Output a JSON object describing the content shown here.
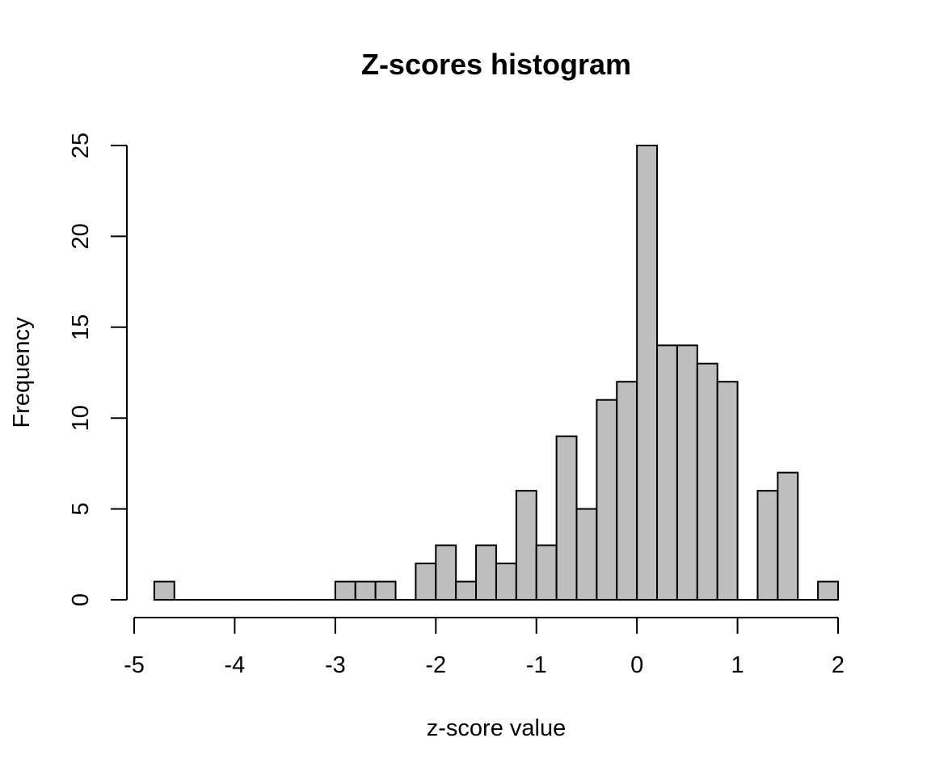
{
  "chart_data": {
    "type": "bar",
    "title": "Z-scores histogram",
    "xlabel": "z-score value",
    "ylabel": "Frequency",
    "bin_width": 0.2,
    "bins": [
      {
        "x0": -4.8,
        "x1": -4.6,
        "count": 1
      },
      {
        "x0": -4.6,
        "x1": -4.4,
        "count": 0
      },
      {
        "x0": -4.4,
        "x1": -4.2,
        "count": 0
      },
      {
        "x0": -4.2,
        "x1": -4.0,
        "count": 0
      },
      {
        "x0": -4.0,
        "x1": -3.8,
        "count": 0
      },
      {
        "x0": -3.8,
        "x1": -3.6,
        "count": 0
      },
      {
        "x0": -3.6,
        "x1": -3.4,
        "count": 0
      },
      {
        "x0": -3.4,
        "x1": -3.2,
        "count": 0
      },
      {
        "x0": -3.2,
        "x1": -3.0,
        "count": 0
      },
      {
        "x0": -3.0,
        "x1": -2.8,
        "count": 1
      },
      {
        "x0": -2.8,
        "x1": -2.6,
        "count": 1
      },
      {
        "x0": -2.6,
        "x1": -2.4,
        "count": 1
      },
      {
        "x0": -2.4,
        "x1": -2.2,
        "count": 0
      },
      {
        "x0": -2.2,
        "x1": -2.0,
        "count": 2
      },
      {
        "x0": -2.0,
        "x1": -1.8,
        "count": 3
      },
      {
        "x0": -1.8,
        "x1": -1.6,
        "count": 1
      },
      {
        "x0": -1.6,
        "x1": -1.4,
        "count": 3
      },
      {
        "x0": -1.4,
        "x1": -1.2,
        "count": 2
      },
      {
        "x0": -1.2,
        "x1": -1.0,
        "count": 6
      },
      {
        "x0": -1.0,
        "x1": -0.8,
        "count": 3
      },
      {
        "x0": -0.8,
        "x1": -0.6,
        "count": 9
      },
      {
        "x0": -0.6,
        "x1": -0.4,
        "count": 5
      },
      {
        "x0": -0.4,
        "x1": -0.2,
        "count": 11
      },
      {
        "x0": -0.2,
        "x1": 0.0,
        "count": 12
      },
      {
        "x0": 0.0,
        "x1": 0.2,
        "count": 25
      },
      {
        "x0": 0.2,
        "x1": 0.4,
        "count": 14
      },
      {
        "x0": 0.4,
        "x1": 0.6,
        "count": 14
      },
      {
        "x0": 0.6,
        "x1": 0.8,
        "count": 13
      },
      {
        "x0": 0.8,
        "x1": 1.0,
        "count": 12
      },
      {
        "x0": 1.0,
        "x1": 1.2,
        "count": 0
      },
      {
        "x0": 1.2,
        "x1": 1.4,
        "count": 6
      },
      {
        "x0": 1.4,
        "x1": 1.6,
        "count": 7
      },
      {
        "x0": 1.6,
        "x1": 1.8,
        "count": 0
      },
      {
        "x0": 1.8,
        "x1": 2.0,
        "count": 1
      }
    ],
    "xlim": [
      -5,
      2
    ],
    "ylim": [
      0,
      25
    ],
    "x_ticks": [
      -5,
      -4,
      -3,
      -2,
      -1,
      0,
      1,
      2
    ],
    "y_ticks": [
      0,
      5,
      10,
      15,
      20,
      25
    ],
    "grid": false,
    "legend": "none",
    "bar_color": "#bebebe",
    "edge_color": "#000000"
  }
}
